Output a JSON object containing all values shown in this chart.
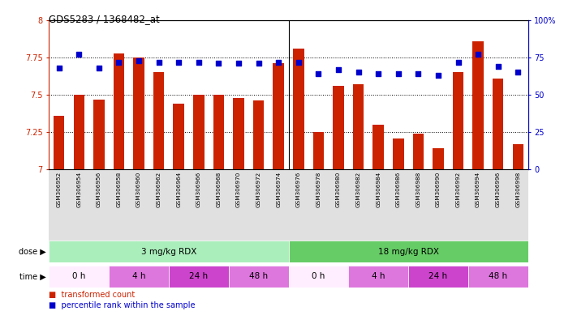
{
  "title": "GDS5283 / 1368482_at",
  "samples": [
    "GSM306952",
    "GSM306954",
    "GSM306956",
    "GSM306958",
    "GSM306960",
    "GSM306962",
    "GSM306964",
    "GSM306966",
    "GSM306968",
    "GSM306970",
    "GSM306972",
    "GSM306974",
    "GSM306976",
    "GSM306978",
    "GSM306980",
    "GSM306982",
    "GSM306984",
    "GSM306986",
    "GSM306988",
    "GSM306990",
    "GSM306992",
    "GSM306994",
    "GSM306996",
    "GSM306998"
  ],
  "bar_values": [
    7.36,
    7.5,
    7.47,
    7.78,
    7.75,
    7.65,
    7.44,
    7.5,
    7.5,
    7.48,
    7.46,
    7.71,
    7.81,
    7.25,
    7.56,
    7.57,
    7.3,
    7.21,
    7.24,
    7.14,
    7.65,
    7.86,
    7.61,
    7.17
  ],
  "dot_values": [
    68,
    77,
    68,
    72,
    73,
    72,
    72,
    72,
    71,
    71,
    71,
    72,
    72,
    64,
    67,
    65,
    64,
    64,
    64,
    63,
    72,
    77,
    69,
    65
  ],
  "ylim": [
    7.0,
    8.0
  ],
  "yticks": [
    7.0,
    7.25,
    7.5,
    7.75,
    8.0
  ],
  "ytick_labels": [
    "7",
    "7.25",
    "7.5",
    "7.75",
    "8"
  ],
  "y2lim": [
    0,
    100
  ],
  "y2ticks": [
    0,
    25,
    50,
    75,
    100
  ],
  "y2tick_labels": [
    "0",
    "25",
    "50",
    "75",
    "100%"
  ],
  "bar_color": "#cc2200",
  "dot_color": "#0000cc",
  "dot_size": 18,
  "background_color": "#ffffff",
  "plot_bg_color": "#ffffff",
  "xticklabel_bg": "#dddddd",
  "dose_colors": [
    "#aaeebb",
    "#66cc66"
  ],
  "dose_labels": [
    "3 mg/kg RDX",
    "18 mg/kg RDX"
  ],
  "dose_starts": [
    0,
    12
  ],
  "dose_ends": [
    12,
    24
  ],
  "time_labels": [
    "0 h",
    "4 h",
    "24 h",
    "48 h",
    "0 h",
    "4 h",
    "24 h",
    "48 h"
  ],
  "time_starts": [
    0,
    3,
    6,
    9,
    12,
    15,
    18,
    21
  ],
  "time_ends": [
    3,
    6,
    9,
    12,
    15,
    18,
    21,
    24
  ],
  "time_colors": [
    "#ffeeff",
    "#dd77dd",
    "#cc44cc",
    "#dd77dd",
    "#ffeeff",
    "#dd77dd",
    "#cc44cc",
    "#dd77dd"
  ]
}
